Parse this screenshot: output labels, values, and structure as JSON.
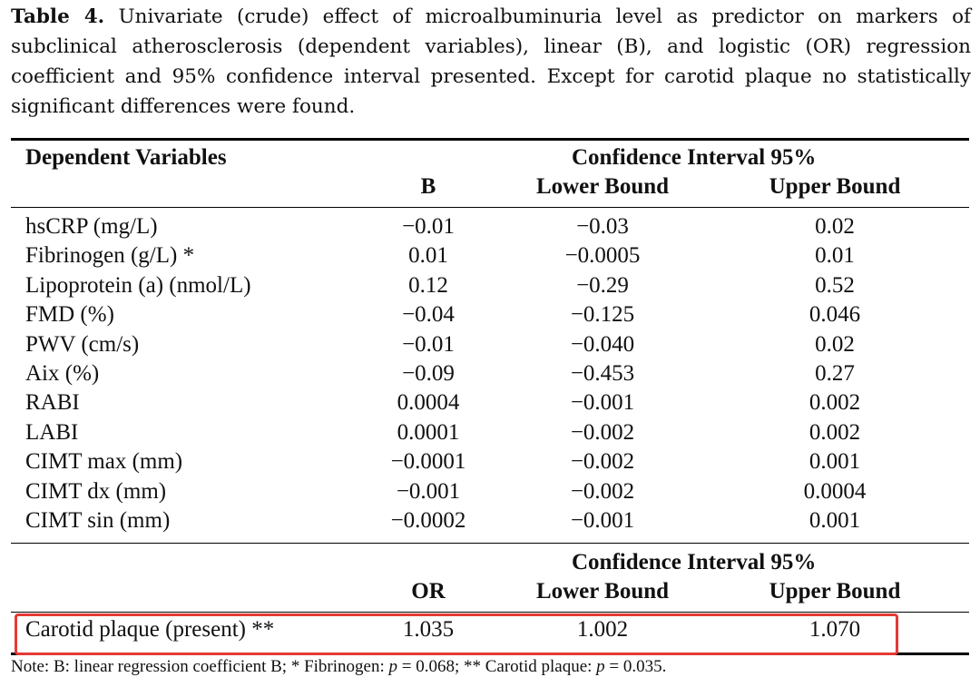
{
  "caption": {
    "label": "Table 4.",
    "text": "Univariate (crude) effect of microalbuminuria level as predictor on markers of subclinical atherosclerosis (dependent variables), linear (B), and logistic (OR) regression coefficient and 95% confidence interval presented.  Except for carotid plaque no statistically significant differences were found."
  },
  "table": {
    "col_dependent": "Dependent Variables",
    "ci_header": "Confidence Interval 95%",
    "col_b": "B",
    "col_lower": "Lower Bound",
    "col_upper": "Upper Bound",
    "rows": [
      {
        "name": "hsCRP (mg/L)",
        "b": "−0.01",
        "lower": "−0.03",
        "upper": "0.02"
      },
      {
        "name": "Fibrinogen (g/L) *",
        "b": "0.01",
        "lower": "−0.0005",
        "upper": "0.01"
      },
      {
        "name": "Lipoprotein (a) (nmol/L)",
        "b": "0.12",
        "lower": "−0.29",
        "upper": "0.52"
      },
      {
        "name": "FMD (%)",
        "b": "−0.04",
        "lower": "−0.125",
        "upper": "0.046"
      },
      {
        "name": "PWV (cm/s)",
        "b": "−0.01",
        "lower": "−0.040",
        "upper": "0.02"
      },
      {
        "name": "Aix (%)",
        "b": "−0.09",
        "lower": "−0.453",
        "upper": "0.27"
      },
      {
        "name": "RABI",
        "b": "0.0004",
        "lower": "−0.001",
        "upper": "0.002"
      },
      {
        "name": "LABI",
        "b": "0.0001",
        "lower": "−0.002",
        "upper": "0.002"
      },
      {
        "name": "CIMT max (mm)",
        "b": "−0.0001",
        "lower": "−0.002",
        "upper": "0.001"
      },
      {
        "name": "CIMT dx (mm)",
        "b": "−0.001",
        "lower": "−0.002",
        "upper": "0.0004"
      },
      {
        "name": "CIMT sin (mm)",
        "b": "−0.0002",
        "lower": "−0.001",
        "upper": "0.001"
      }
    ],
    "ci_header_2": "Confidence Interval 95%",
    "col_or": "OR",
    "col_lower_2": "Lower Bound",
    "col_upper_2": "Upper Bound",
    "logistic_row": {
      "name": "Carotid plaque (present) **",
      "or": "1.035",
      "lower": "1.002",
      "upper": "1.070"
    }
  },
  "note": "Note: B: linear regression coefficient B; * Fibrinogen: p = 0.068; ** Carotid plaque: p = 0.035.",
  "colors": {
    "highlight": "#e53935"
  }
}
